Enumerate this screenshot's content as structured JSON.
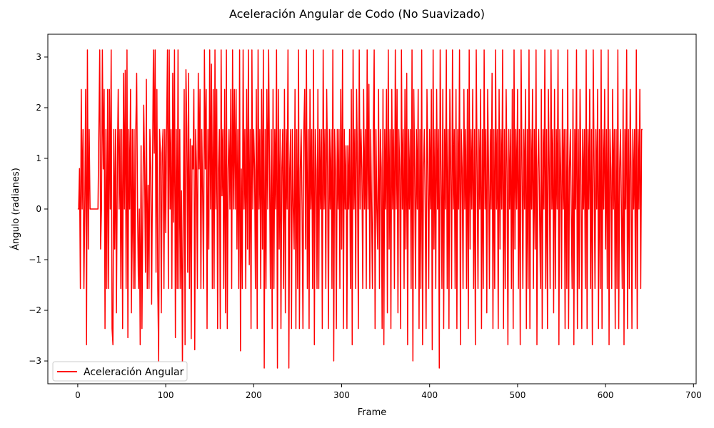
{
  "chart_data": {
    "type": "line",
    "title": "Aceleración Angular de Codo (No Suavizado)",
    "xlabel": "Frame",
    "ylabel": "Ángulo (radianes)",
    "xlim": [
      -34,
      703
    ],
    "ylim": [
      -3.45,
      3.45
    ],
    "x_ticks": [
      0,
      100,
      200,
      300,
      400,
      500,
      600,
      700
    ],
    "y_ticks": [
      -3,
      -2,
      -1,
      0,
      1,
      2,
      3
    ],
    "grid": false,
    "legend_position": "lower-left",
    "series": [
      {
        "name": "Aceleración Angular",
        "color": "#ff0000",
        "x_start": 0,
        "x_step": 1,
        "values": [
          0,
          0,
          0.8,
          -1.57,
          2.36,
          0,
          1.57,
          -1.57,
          0,
          2.36,
          -2.68,
          3.14,
          -0.79,
          1.57,
          0,
          0,
          0,
          0,
          0,
          0,
          0,
          0,
          0,
          0,
          1.57,
          3.14,
          -0.79,
          0,
          3.14,
          0.79,
          2.36,
          -2.36,
          1.57,
          -1.57,
          2.36,
          -1.57,
          2.36,
          0,
          3.14,
          -2.36,
          -2.68,
          1.57,
          -0.79,
          1.57,
          -2.05,
          0.79,
          2.36,
          0,
          1.57,
          -1.57,
          1.57,
          -2.36,
          2.68,
          0,
          2.74,
          -1.57,
          3.14,
          -2.54,
          1.57,
          0,
          2.36,
          -2.05,
          1.57,
          -1.57,
          1.57,
          -1.57,
          1.57,
          2.68,
          0,
          -1.57,
          0,
          -2.68,
          1.25,
          -2.36,
          0,
          2.05,
          0.79,
          -1.25,
          2.56,
          -1.57,
          0.47,
          -1.57,
          1.57,
          0.79,
          -1.88,
          0.79,
          3.14,
          1.1,
          3.14,
          -1.25,
          2.36,
          -1.57,
          -3.0,
          1.57,
          1.1,
          -2.05,
          1.1,
          1.57,
          -1.57,
          1.57,
          -0.47,
          1.57,
          3.14,
          -1.57,
          3.14,
          0,
          1.57,
          -1.57,
          2.68,
          -0.26,
          3.14,
          -2.54,
          1.57,
          -1.57,
          3.14,
          -1.57,
          1.57,
          -1.57,
          0.36,
          -3.14,
          0,
          2.36,
          -2.68,
          2.75,
          1.57,
          -1.25,
          2.68,
          -1.57,
          1.38,
          -2.56,
          1.25,
          0.79,
          2.36,
          -2.78,
          1.57,
          0.79,
          -1.57,
          2.68,
          0.79,
          2.36,
          -1.57,
          1.57,
          0.26,
          -1.57,
          3.14,
          0.79,
          2.36,
          -2.36,
          1.57,
          -0.79,
          3.14,
          0,
          2.86,
          -1.57,
          2.36,
          -1.57,
          3.14,
          0,
          2.36,
          -2.36,
          0.79,
          1.57,
          -2.36,
          3.14,
          0.26,
          1.57,
          -1.57,
          2.36,
          -2.05,
          3.14,
          -2.36,
          0.79,
          1.57,
          0,
          2.36,
          -1.57,
          3.14,
          0,
          2.36,
          0,
          2.36,
          -0.79,
          1.57,
          -1.57,
          3.14,
          -2.8,
          0.79,
          -1.57,
          3.14,
          0,
          1.57,
          -1.57,
          2.36,
          -0.79,
          3.14,
          -1.1,
          1.57,
          -2.36,
          3.14,
          0,
          1.57,
          0.79,
          -1.57,
          2.36,
          -2.36,
          3.14,
          0,
          1.57,
          -1.57,
          2.36,
          -0.79,
          3.14,
          -3.14,
          1.57,
          -1.57,
          2.36,
          0,
          3.14,
          0.79,
          -1.57,
          1.57,
          -2.36,
          2.36,
          -1.57,
          1.57,
          0,
          3.14,
          -3.14,
          2.36,
          -0.79,
          1.57,
          -2.36,
          0.79,
          1.57,
          -1.57,
          2.36,
          -2.05,
          1.57,
          0,
          3.14,
          -3.14,
          0.79,
          1.57,
          -2.36,
          1.57,
          0,
          -0.79,
          2.36,
          -2.36,
          1.57,
          -1.57,
          3.14,
          -2.36,
          0.79,
          1.57,
          0,
          -2.36,
          1.57,
          2.36,
          -0.79,
          3.14,
          -1.57,
          1.57,
          -2.36,
          2.36,
          0,
          1.57,
          -1.57,
          3.14,
          -2.68,
          1.57,
          0.79,
          -1.57,
          2.36,
          -1.57,
          1.57,
          0,
          1.57,
          -2.36,
          3.14,
          0,
          1.57,
          -1.57,
          2.36,
          0.79,
          -2.36,
          1.57,
          0,
          1.57,
          -1.57,
          3.14,
          -3.0,
          1.57,
          0.79,
          -2.36,
          1.57,
          0,
          1.57,
          -1.57,
          2.36,
          -0.79,
          3.14,
          -2.36,
          1.57,
          0,
          1.25,
          -2.36,
          1.25,
          0,
          1.57,
          -1.57,
          2.36,
          -2.68,
          3.14,
          0,
          1.57,
          -1.57,
          2.36,
          0.79,
          -2.36,
          3.14,
          0,
          1.57,
          0.79,
          -1.57,
          2.36,
          0,
          1.57,
          -1.57,
          3.14,
          0,
          2.46,
          -1.57,
          1.57,
          0,
          -1.57,
          1.57,
          3.14,
          -2.36,
          1.57,
          0,
          -0.79,
          2.36,
          -1.57,
          1.57,
          0.79,
          -2.36,
          2.36,
          -2.68,
          1.57,
          0,
          2.36,
          -2.05,
          3.14,
          -0.79,
          1.57,
          -2.36,
          2.36,
          0,
          1.57,
          -1.57,
          3.14,
          0,
          2.36,
          -2.05,
          1.57,
          0.79,
          -2.36,
          3.14,
          0,
          1.57,
          -1.57,
          2.36,
          -0.79,
          2.68,
          -2.68,
          1.57,
          0,
          1.57,
          -1.57,
          3.14,
          -3.0,
          2.36,
          0.79,
          -1.57,
          1.57,
          0,
          2.36,
          -2.36,
          1.57,
          -1.57,
          3.14,
          -2.68,
          0.79,
          1.57,
          0,
          -2.36,
          2.36,
          0.79,
          -1.57,
          1.57,
          0,
          2.36,
          -2.78,
          3.14,
          -0.79,
          1.57,
          -1.57,
          2.36,
          0,
          1.57,
          -3.14,
          3.14,
          0.79,
          -1.57,
          2.36,
          -2.36,
          1.57,
          0,
          3.14,
          -1.57,
          1.57,
          -2.36,
          2.36,
          0.79,
          -1.57,
          3.14,
          0,
          1.57,
          -1.57,
          2.36,
          -2.36,
          1.57,
          0,
          3.14,
          -2.68,
          1.57,
          0.79,
          -1.57,
          2.36,
          0,
          1.57,
          -1.57,
          2.36,
          -2.36,
          3.14,
          -0.79,
          1.57,
          0,
          2.36,
          -1.57,
          1.57,
          -2.68,
          3.14,
          0.79,
          -1.57,
          1.57,
          0,
          2.36,
          -2.36,
          1.57,
          -1.57,
          3.14,
          0,
          1.57,
          -2.05,
          2.36,
          0.79,
          -1.57,
          1.57,
          0,
          2.68,
          -2.36,
          1.57,
          -1.57,
          3.14,
          0,
          1.57,
          -2.36,
          2.36,
          -0.79,
          1.57,
          0,
          3.14,
          -2.36,
          1.57,
          -1.57,
          2.36,
          0.79,
          -2.68,
          1.57,
          0,
          1.57,
          -1.57,
          2.36,
          -2.36,
          3.14,
          -0.79,
          1.57,
          0,
          2.36,
          -1.57,
          1.57,
          -2.68,
          3.14,
          0.79,
          -1.57,
          1.57,
          0,
          2.36,
          -2.36,
          1.57,
          -1.57,
          3.14,
          -2.36,
          1.57,
          0,
          2.36,
          -1.57,
          1.57,
          -0.79,
          3.14,
          -2.68,
          0.79,
          1.57,
          0,
          -1.57,
          2.36,
          -2.36,
          1.57,
          0,
          3.14,
          -1.57,
          1.57,
          -2.36,
          2.36,
          0.79,
          -1.57,
          3.14,
          0,
          1.57,
          -2.05,
          2.36,
          -1.57,
          1.57,
          0,
          3.14,
          -2.68,
          1.57,
          0.79,
          -1.57,
          2.36,
          0,
          1.57,
          -2.36,
          1.57,
          -1.57,
          3.14,
          -2.36,
          0.79,
          1.57,
          0,
          -1.57,
          2.36,
          -2.68,
          1.57,
          0,
          3.14,
          -2.36,
          1.57,
          -1.57,
          2.36,
          0.79,
          -2.36,
          1.57,
          0,
          1.57,
          -1.57,
          3.14,
          -2.36,
          1.57,
          0,
          2.36,
          -1.57,
          1.57,
          -2.68,
          3.14,
          0.79,
          -1.57,
          1.57,
          0,
          2.36,
          -2.36,
          1.57,
          -1.57,
          3.14,
          -2.36,
          1.57,
          0,
          2.36,
          -0.79,
          1.57,
          -1.57,
          3.14,
          -2.68,
          1.57,
          0.79,
          -1.57,
          2.36,
          0,
          1.57,
          -2.36,
          1.57,
          -1.57,
          3.14,
          -2.36,
          0.79,
          1.57,
          0,
          -1.57,
          2.36,
          -2.68,
          1.57,
          0,
          3.14,
          -2.36,
          1.57,
          -1.57,
          2.36,
          0.79,
          -2.36,
          1.57,
          0,
          1.57,
          -1.57,
          3.14,
          -2.36,
          1.57,
          0,
          2.36,
          -1.57,
          1.57,
          1.57
        ]
      }
    ]
  }
}
